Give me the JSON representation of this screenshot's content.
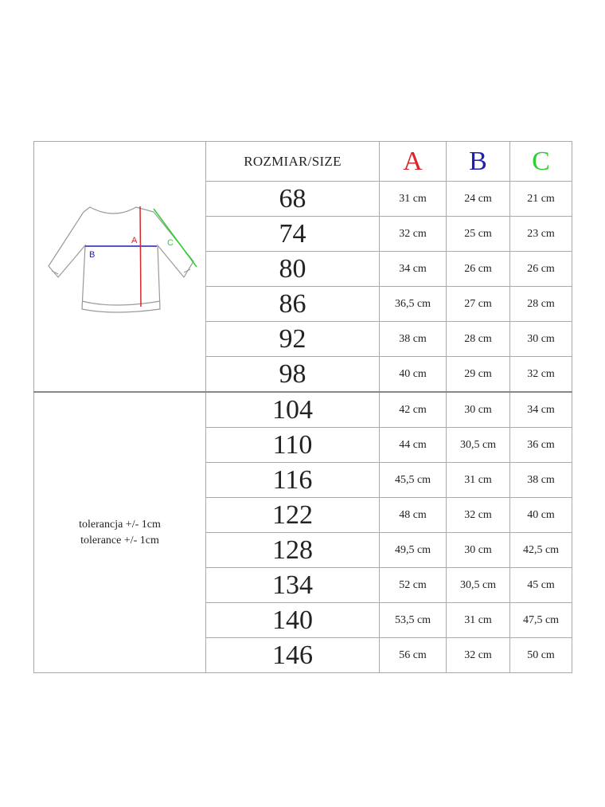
{
  "header": {
    "size_label": "ROZMIAR/SIZE",
    "col_a": "A",
    "col_b": "B",
    "col_c": "C"
  },
  "colors": {
    "a": "#d9262a",
    "b": "#1f1fb8",
    "c": "#2fcf2f"
  },
  "diagram": {
    "label_a": "A",
    "label_b": "B",
    "label_c": "C"
  },
  "tolerance": [
    "tolerancja +/- 1cm",
    "tolerance +/- 1cm"
  ],
  "rows": [
    {
      "size": "68",
      "a": "31 cm",
      "b": "24 cm",
      "c": "21 cm"
    },
    {
      "size": "74",
      "a": "32 cm",
      "b": "25 cm",
      "c": "23 cm"
    },
    {
      "size": "80",
      "a": "34 cm",
      "b": "26 cm",
      "c": "26 cm"
    },
    {
      "size": "86",
      "a": "36,5 cm",
      "b": "27 cm",
      "c": "28 cm"
    },
    {
      "size": "92",
      "a": "38 cm",
      "b": "28 cm",
      "c": "30 cm"
    },
    {
      "size": "98",
      "a": "40 cm",
      "b": "29 cm",
      "c": "32 cm"
    },
    {
      "size": "104",
      "a": "42 cm",
      "b": "30 cm",
      "c": "34 cm"
    },
    {
      "size": "110",
      "a": "44 cm",
      "b": "30,5 cm",
      "c": "36 cm"
    },
    {
      "size": "116",
      "a": "45,5 cm",
      "b": "31 cm",
      "c": "38 cm"
    },
    {
      "size": "122",
      "a": "48 cm",
      "b": "32 cm",
      "c": "40 cm"
    },
    {
      "size": "128",
      "a": "49,5 cm",
      "b": "30 cm",
      "c": "42,5 cm"
    },
    {
      "size": "134",
      "a": "52 cm",
      "b": "30,5 cm",
      "c": "45 cm"
    },
    {
      "size": "140",
      "a": "53,5 cm",
      "b": "31 cm",
      "c": "47,5 cm"
    },
    {
      "size": "146",
      "a": "56 cm",
      "b": "32 cm",
      "c": "50 cm"
    }
  ]
}
